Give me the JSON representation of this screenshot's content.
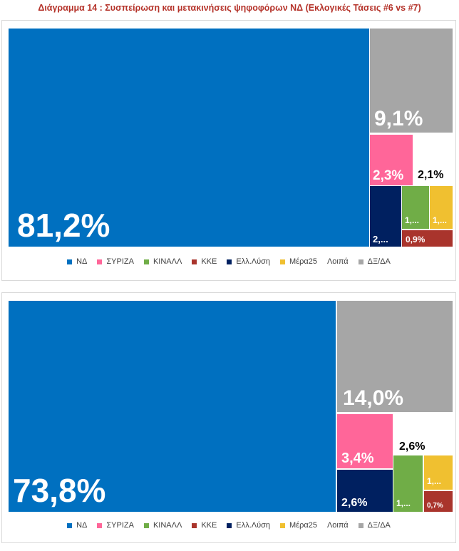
{
  "title": "Διάγραμμα 14 : Συσπείρωση και μετακινήσεις ψηφοφόρων ΝΔ (Εκλογικές Τάσεις #6 vs #7)",
  "colors": {
    "ND": "#0070c0",
    "SYRIZA": "#ff6699",
    "KINALL": "#70ad47",
    "KKE": "#a9342c",
    "ElLysi": "#002060",
    "Mera25": "#f0c030",
    "Loipa": "#ffffff",
    "DXDA": "#a6a6a6",
    "title": "#b5332a"
  },
  "legend": [
    {
      "label": "ΝΔ",
      "color_key": "ND"
    },
    {
      "label": "ΣΥΡΙΖΑ",
      "color_key": "SYRIZA"
    },
    {
      "label": "ΚΙΝΑΛΛ",
      "color_key": "KINALL"
    },
    {
      "label": "ΚΚΕ",
      "color_key": "KKE"
    },
    {
      "label": "Ελλ.Λύση",
      "color_key": "ElLysi"
    },
    {
      "label": "Μέρα25",
      "color_key": "Mera25"
    },
    {
      "label": "Λοιπά",
      "color_key": "Loipa"
    },
    {
      "label": "ΔΞ/ΔΑ",
      "color_key": "DXDA"
    }
  ],
  "chart_data": [
    {
      "type": "treemap",
      "values": {
        "ND": 81.2,
        "DXDA": 9.1,
        "SYRIZA": 2.3,
        "Loipa": 2.1,
        "ElLysi": 2.0,
        "KINALL": 1.0,
        "Mera25": 1.0,
        "KKE": 0.9
      },
      "labels": {
        "ND": "81,2%",
        "DXDA": "9,1%",
        "SYRIZA": "2,3%",
        "Loipa": "2,1%",
        "ElLysi": "2,...",
        "KINALL": "1,...",
        "Mera25": "1,...",
        "KKE": "0,9%"
      }
    },
    {
      "type": "treemap",
      "values": {
        "ND": 73.8,
        "DXDA": 14.0,
        "SYRIZA": 3.4,
        "Loipa": 2.6,
        "ElLysi": 2.6,
        "KINALL": 1.0,
        "Mera25": 1.0,
        "KKE": 0.7
      },
      "labels": {
        "ND": "73,8%",
        "DXDA": "14,0%",
        "SYRIZA": "3,4%",
        "Loipa": "2,6%",
        "ElLysi": "2,6%",
        "KINALL": "1,...",
        "Mera25": "1,...",
        "KKE": "0,7%"
      }
    }
  ]
}
